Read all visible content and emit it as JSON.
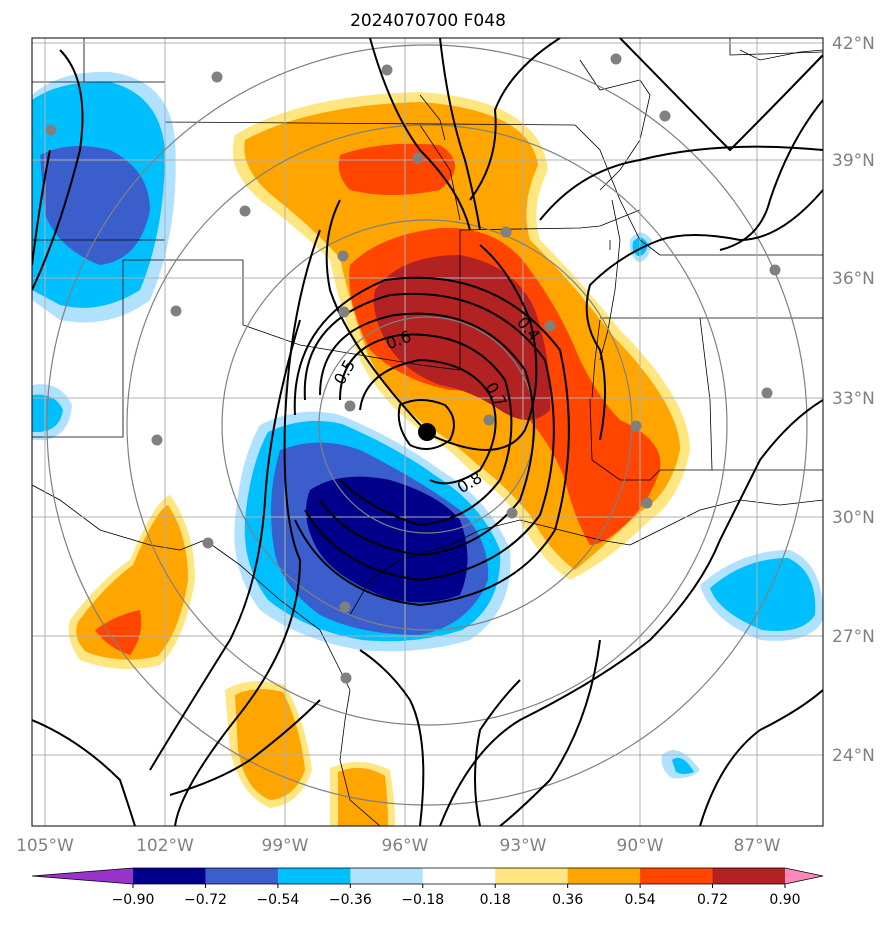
{
  "title": "2024070700 F048",
  "lon_labels": [
    "105°W",
    "102°W",
    "99°W",
    "96°W",
    "93°W",
    "90°W",
    "87°W"
  ],
  "lat_labels": [
    "42°N",
    "39°N",
    "36°N",
    "33°N",
    "30°N",
    "27°N",
    "24°N"
  ],
  "contour_labels": [
    "0.5",
    "0.6",
    "0.4",
    "0.7",
    "0.8"
  ],
  "colorbar": {
    "ticks": [
      "−0.90",
      "−0.72",
      "−0.54",
      "−0.36",
      "−0.18",
      "0.18",
      "0.36",
      "0.54",
      "0.72",
      "0.90"
    ],
    "colors": [
      "#9933cc",
      "#00008b",
      "#3a5fcd",
      "#00bfff",
      "#b0e2ff",
      "#ffffff",
      "#ffe680",
      "#ffa500",
      "#ff4500",
      "#b22222",
      "#ff88bb"
    ]
  },
  "colors": {
    "grid": "#b0b0b0",
    "ring": "#808080",
    "station": "#808080",
    "tick_label": "#808080"
  }
}
